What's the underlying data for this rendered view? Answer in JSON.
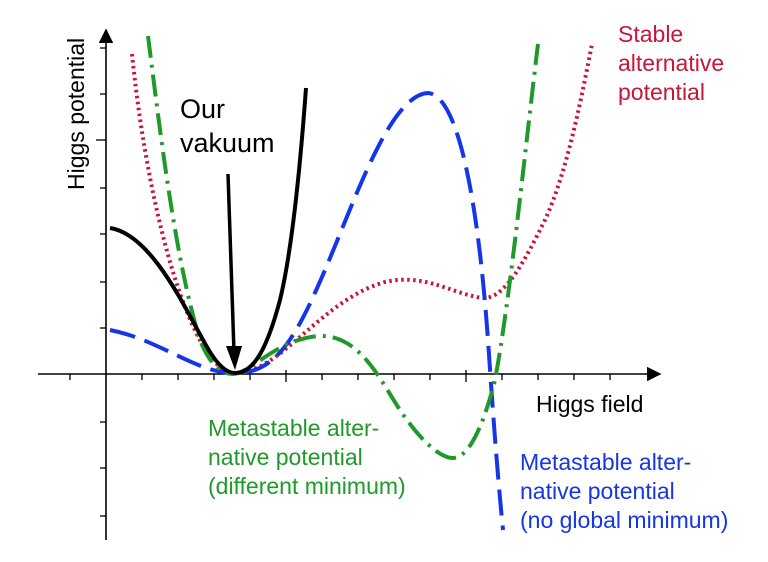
{
  "axes": {
    "x_label": "Higgs field",
    "y_label": "Higgs potential"
  },
  "annotations": {
    "our_vacuum": [
      "Our",
      "vakuum"
    ],
    "stable": [
      "Stable",
      "alternative",
      "potential"
    ],
    "metastable_green": [
      "Metastable alter-",
      "native potential",
      "(different minimum)"
    ],
    "metastable_blue": [
      "Metastable alter-",
      "native potential",
      "(no global minimum)"
    ]
  },
  "colors": {
    "our_vacuum": "#000000",
    "stable": "#c8153a",
    "metastable_green": "#1f9a2a",
    "metastable_blue": "#1435e8"
  }
}
